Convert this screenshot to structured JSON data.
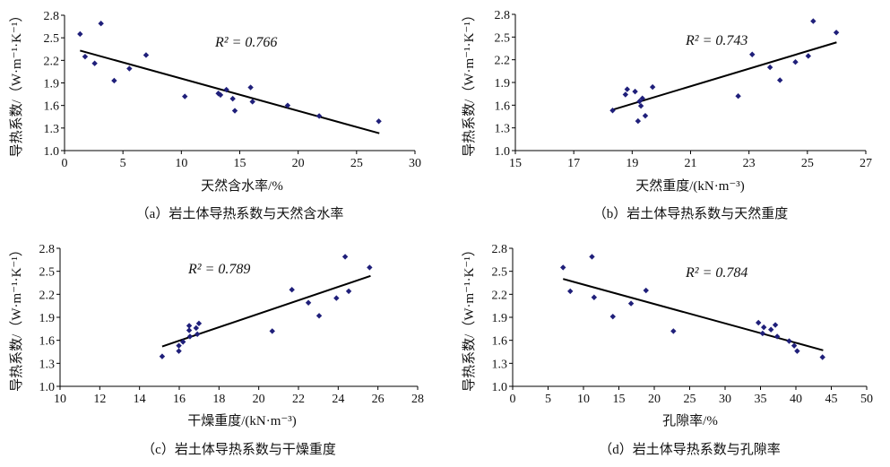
{
  "chart_data": [
    {
      "type": "scatter",
      "id": "a",
      "caption": "（a）岩土体导热系数与天然含水率",
      "xlabel": "天然含水率/%",
      "ylabel": "导热系数/（W·m⁻¹·K⁻¹）",
      "xlim": [
        0,
        30
      ],
      "xticks": [
        0,
        5,
        10,
        15,
        20,
        25,
        30
      ],
      "ylim": [
        1.0,
        2.8
      ],
      "yticks": [
        "1.0",
        "1.3",
        "1.6",
        "1.9",
        "2.2",
        "2.5",
        "2.8"
      ],
      "annotation": "R² = 0.766",
      "points": [
        [
          1.33,
          2.55
        ],
        [
          3.12,
          2.69
        ],
        [
          1.76,
          2.25
        ],
        [
          2.58,
          2.16
        ],
        [
          4.25,
          1.93
        ],
        [
          5.55,
          2.09
        ],
        [
          6.98,
          2.27
        ],
        [
          10.3,
          1.72
        ],
        [
          13.17,
          1.76
        ],
        [
          13.35,
          1.74
        ],
        [
          13.86,
          1.81
        ],
        [
          14.4,
          1.69
        ],
        [
          14.58,
          1.53
        ],
        [
          15.93,
          1.84
        ],
        [
          16.09,
          1.65
        ],
        [
          19.1,
          1.6
        ],
        [
          21.8,
          1.46
        ],
        [
          26.9,
          1.39
        ]
      ],
      "trendline": [
        [
          1.33,
          2.33
        ],
        [
          26.95,
          1.23
        ]
      ],
      "color": "#1f1f7a"
    },
    {
      "type": "scatter",
      "id": "b",
      "caption": "（b）岩土体导热系数与天然重度",
      "xlabel": "天然重度/(kN·m⁻³)",
      "ylabel": "导热系数/（W·m⁻¹·K⁻¹）",
      "xlim": [
        15,
        27
      ],
      "xticks": [
        15,
        17,
        19,
        21,
        23,
        25,
        27
      ],
      "ylim": [
        1.0,
        2.8
      ],
      "yticks": [
        "1.0",
        "1.3",
        "1.6",
        "1.9",
        "2.2",
        "2.5",
        "2.8"
      ],
      "annotation": "R² = 0.743",
      "points": [
        [
          18.33,
          1.53
        ],
        [
          18.77,
          1.74
        ],
        [
          18.83,
          1.81
        ],
        [
          19.1,
          1.78
        ],
        [
          19.2,
          1.39
        ],
        [
          19.3,
          1.59
        ],
        [
          19.25,
          1.65
        ],
        [
          19.35,
          1.69
        ],
        [
          19.45,
          1.46
        ],
        [
          19.7,
          1.84
        ],
        [
          22.63,
          1.72
        ],
        [
          23.11,
          2.27
        ],
        [
          23.72,
          2.1
        ],
        [
          24.06,
          1.93
        ],
        [
          24.59,
          2.17
        ],
        [
          25.03,
          2.25
        ],
        [
          25.2,
          2.71
        ],
        [
          25.99,
          2.56
        ]
      ],
      "trendline": [
        [
          18.33,
          1.54
        ],
        [
          26.0,
          2.43
        ]
      ],
      "color": "#1f1f7a"
    },
    {
      "type": "scatter",
      "id": "c",
      "caption": "（c）岩土体导热系数与干燥重度",
      "xlabel": "干燥重度/(kN·m⁻³)",
      "ylabel": "导热系数/（W·m⁻¹·K⁻¹）",
      "xlim": [
        10,
        28
      ],
      "xticks": [
        10,
        12,
        14,
        16,
        18,
        20,
        22,
        24,
        26,
        28
      ],
      "ylim": [
        1.0,
        2.8
      ],
      "yticks": [
        "1.0",
        "1.3",
        "1.6",
        "1.9",
        "2.2",
        "2.5",
        "2.8"
      ],
      "annotation": "R² = 0.789",
      "points": [
        [
          15.14,
          1.39
        ],
        [
          15.98,
          1.46
        ],
        [
          15.98,
          1.53
        ],
        [
          16.19,
          1.58
        ],
        [
          16.54,
          1.65
        ],
        [
          16.5,
          1.73
        ],
        [
          16.5,
          1.79
        ],
        [
          16.91,
          1.68
        ],
        [
          16.85,
          1.76
        ],
        [
          16.99,
          1.82
        ],
        [
          20.68,
          1.72
        ],
        [
          21.67,
          2.26
        ],
        [
          22.5,
          2.09
        ],
        [
          23.04,
          1.92
        ],
        [
          23.91,
          2.15
        ],
        [
          24.53,
          2.24
        ],
        [
          24.35,
          2.69
        ],
        [
          25.58,
          2.55
        ]
      ],
      "trendline": [
        [
          15.14,
          1.52
        ],
        [
          25.63,
          2.44
        ]
      ],
      "color": "#1f1f7a"
    },
    {
      "type": "scatter",
      "id": "d",
      "caption": "（d）岩土体导热系数与孔隙率",
      "xlabel": "孔隙率/%",
      "ylabel": "导热系数/（W·m⁻¹·K⁻¹）",
      "xlim": [
        0,
        50
      ],
      "xticks": [
        0,
        5,
        10,
        15,
        20,
        25,
        30,
        35,
        40,
        45,
        50
      ],
      "ylim": [
        1.0,
        2.8
      ],
      "yticks": [
        "1.0",
        "1.3",
        "1.6",
        "1.9",
        "2.2",
        "2.5",
        "2.8"
      ],
      "annotation": "R² = 0.784",
      "points": [
        [
          7.12,
          2.55
        ],
        [
          11.2,
          2.69
        ],
        [
          8.13,
          2.24
        ],
        [
          11.5,
          2.16
        ],
        [
          14.15,
          1.91
        ],
        [
          16.72,
          2.08
        ],
        [
          18.83,
          2.25
        ],
        [
          22.7,
          1.72
        ],
        [
          34.71,
          1.83
        ],
        [
          35.47,
          1.77
        ],
        [
          35.3,
          1.69
        ],
        [
          36.48,
          1.74
        ],
        [
          37.1,
          1.8
        ],
        [
          37.36,
          1.65
        ],
        [
          39.05,
          1.59
        ],
        [
          39.76,
          1.53
        ],
        [
          40.18,
          1.46
        ],
        [
          43.76,
          1.38
        ]
      ],
      "trendline": [
        [
          7.12,
          2.4
        ],
        [
          43.85,
          1.47
        ]
      ],
      "color": "#1f1f7a"
    }
  ]
}
